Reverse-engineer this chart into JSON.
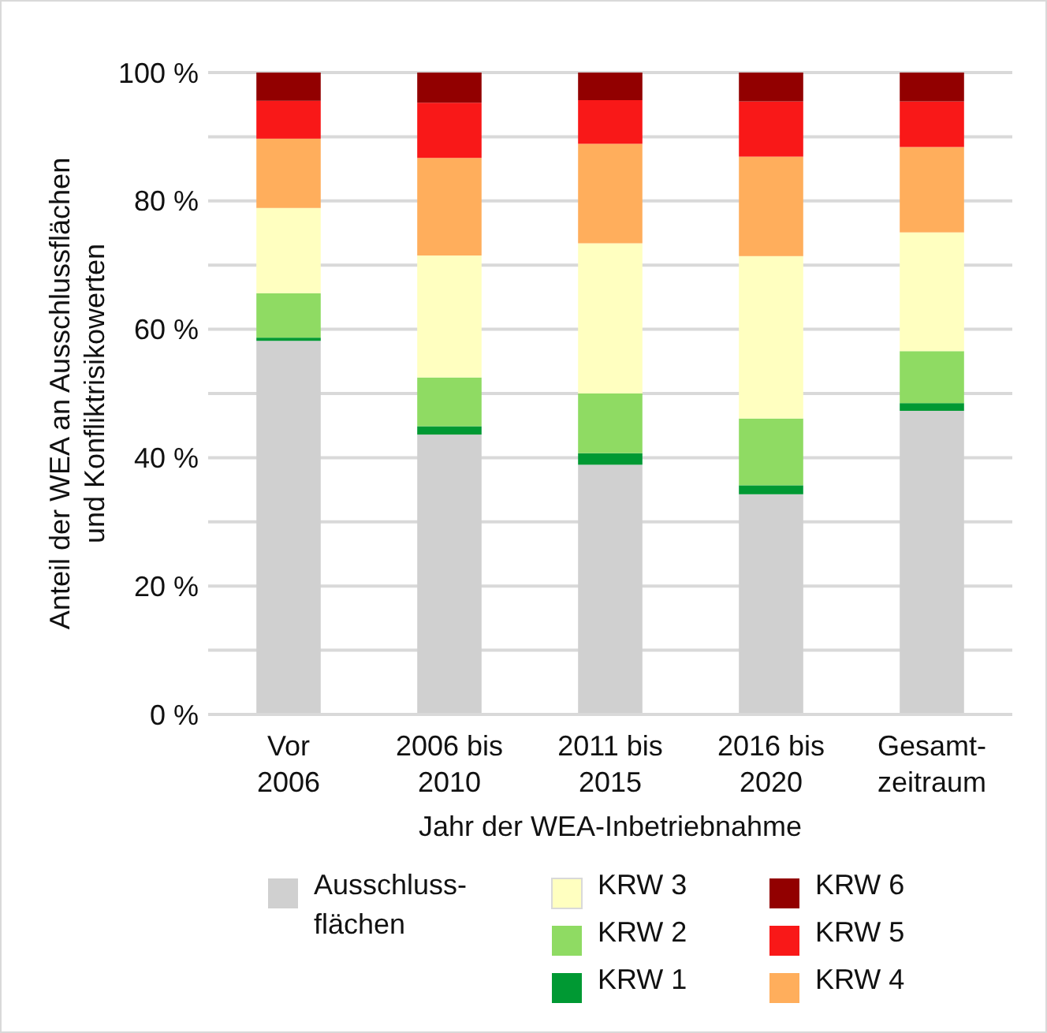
{
  "chart_data": {
    "type": "bar",
    "stacked": true,
    "xlabel": "Jahr der WEA-Inbetriebnahme",
    "ylabel": "Anteil der WEA an Ausschlussflächen und Konfliktrisikowerten",
    "categories": [
      "Vor 2006",
      "2006 bis 2010",
      "2011 bis 2015",
      "2016 bis 2020",
      "Gesamt-zeitraum"
    ],
    "series": [
      {
        "name": "Ausschluss-flächen",
        "color": "#d0d0d0",
        "values": [
          58.2,
          43.6,
          38.9,
          34.3,
          47.3
        ]
      },
      {
        "name": "KRW 1",
        "color": "#009933",
        "values": [
          0.5,
          1.3,
          1.8,
          1.4,
          1.2
        ]
      },
      {
        "name": "KRW 2",
        "color": "#8fdb63",
        "values": [
          6.9,
          7.6,
          9.3,
          10.4,
          8.1
        ]
      },
      {
        "name": "KRW 3",
        "color": "#ffffc0",
        "values": [
          13.3,
          19.0,
          23.4,
          25.3,
          18.5
        ]
      },
      {
        "name": "KRW 4",
        "color": "#ffae5c",
        "values": [
          10.8,
          15.2,
          15.5,
          15.5,
          13.3
        ]
      },
      {
        "name": "KRW 5",
        "color": "#f91818",
        "values": [
          5.9,
          8.6,
          6.8,
          8.6,
          7.1
        ]
      },
      {
        "name": "KRW 6",
        "color": "#920000",
        "values": [
          4.4,
          4.7,
          4.3,
          4.5,
          4.5
        ]
      }
    ],
    "ylim": [
      0,
      100
    ],
    "yticks": [
      {
        "value": 0,
        "label": "0 %"
      },
      {
        "value": 10,
        "label": null
      },
      {
        "value": 20,
        "label": "20 %"
      },
      {
        "value": 30,
        "label": null
      },
      {
        "value": 40,
        "label": "40 %"
      },
      {
        "value": 50,
        "label": null
      },
      {
        "value": 60,
        "label": "60 %"
      },
      {
        "value": 70,
        "label": null
      },
      {
        "value": 80,
        "label": "80 %"
      },
      {
        "value": 90,
        "label": null
      },
      {
        "value": 100,
        "label": "100 %"
      }
    ],
    "grid": "y",
    "legend": "bottom"
  }
}
